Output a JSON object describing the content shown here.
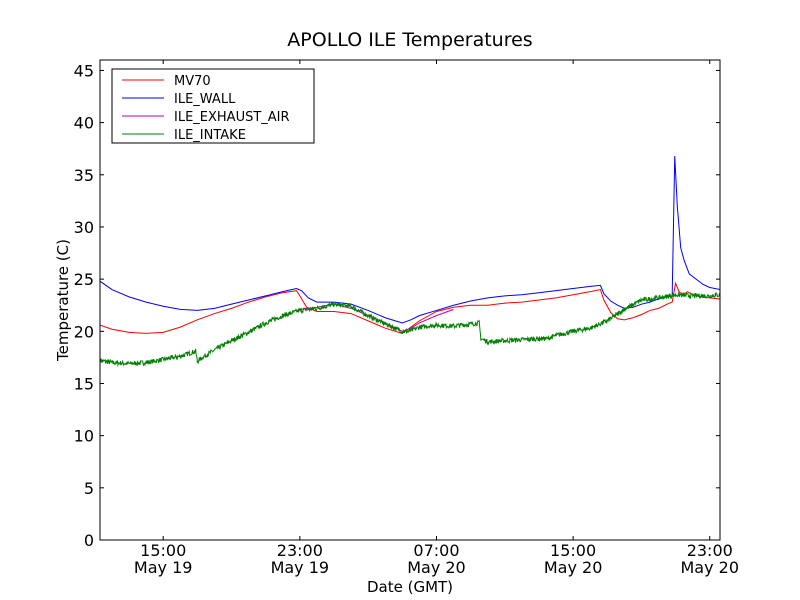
{
  "chart_data": {
    "type": "line",
    "title": "APOLLO ILE Temperatures",
    "xlabel": "Date (GMT)",
    "ylabel": "Temperature (C)",
    "ylim": [
      0,
      46
    ],
    "xlim": [
      11.3,
      47.6
    ],
    "x_unit": "hours since May 19 00:00 GMT",
    "yticks": [
      0,
      5,
      10,
      15,
      20,
      25,
      30,
      35,
      40,
      45
    ],
    "xticks": [
      {
        "x": 15,
        "time": "15:00",
        "date": "May 19"
      },
      {
        "x": 23,
        "time": "23:00",
        "date": "May 19"
      },
      {
        "x": 31,
        "time": "07:00",
        "date": "May 20"
      },
      {
        "x": 39,
        "time": "15:00",
        "date": "May 20"
      },
      {
        "x": 47,
        "time": "23:00",
        "date": "May 20"
      }
    ],
    "legend_position": "top-left",
    "series": [
      {
        "name": "MV70",
        "color": "#ff0000",
        "x": [
          11.3,
          12,
          13,
          14,
          15,
          16,
          17,
          18,
          19,
          20,
          21,
          22,
          22.8,
          23.0,
          23.4,
          24,
          25,
          26,
          27,
          28,
          29,
          29.5,
          30,
          31,
          32,
          33,
          34,
          35,
          36,
          37,
          38,
          39,
          40,
          40.6,
          40.8,
          41.2,
          41.6,
          42,
          42.5,
          43,
          43.5,
          44,
          44.5,
          44.8,
          45.0,
          45.2,
          45.4,
          45.7,
          46.0,
          46.5,
          47.0,
          47.6
        ],
        "y": [
          20.6,
          20.2,
          19.9,
          19.8,
          19.9,
          20.4,
          21.1,
          21.7,
          22.2,
          22.8,
          23.3,
          23.7,
          23.9,
          23.4,
          22.3,
          21.9,
          21.9,
          21.7,
          21.0,
          20.3,
          19.8,
          20.4,
          21.0,
          21.9,
          22.3,
          22.5,
          22.5,
          22.7,
          22.8,
          23.0,
          23.2,
          23.5,
          23.8,
          24.0,
          23.0,
          21.8,
          21.2,
          21.1,
          21.3,
          21.6,
          22.0,
          22.2,
          22.6,
          22.8,
          24.6,
          23.8,
          23.5,
          23.8,
          23.5,
          23.3,
          23.2,
          23.1
        ]
      },
      {
        "name": "ILE_WALL",
        "color": "#0000ff",
        "x": [
          11.3,
          12,
          13,
          14,
          15,
          16,
          17,
          18,
          19,
          20,
          21,
          22,
          22.8,
          23.1,
          23.5,
          24,
          25,
          26,
          27,
          28,
          29,
          29.5,
          30,
          31,
          32,
          33,
          34,
          35,
          36,
          37,
          38,
          39,
          40,
          40.6,
          40.8,
          41.2,
          41.6,
          42,
          42.5,
          43,
          43.5,
          44,
          44.5,
          44.8,
          44.95,
          45.1,
          45.3,
          45.5,
          45.8,
          46.2,
          46.6,
          47.0,
          47.6
        ],
        "y": [
          24.8,
          24.0,
          23.3,
          22.8,
          22.4,
          22.1,
          22.0,
          22.2,
          22.6,
          23.0,
          23.4,
          23.8,
          24.1,
          23.9,
          23.2,
          22.8,
          22.8,
          22.6,
          22.0,
          21.3,
          20.8,
          21.1,
          21.5,
          22.0,
          22.5,
          22.9,
          23.2,
          23.4,
          23.5,
          23.7,
          23.9,
          24.1,
          24.3,
          24.4,
          23.6,
          22.9,
          22.5,
          22.2,
          22.3,
          22.6,
          22.8,
          23.1,
          23.3,
          23.4,
          36.8,
          32.0,
          28.0,
          26.8,
          25.5,
          25.0,
          24.5,
          24.2,
          24.0
        ]
      },
      {
        "name": "ILE_EXHAUST_AIR",
        "color": "#bf00bf",
        "x": [
          23.0,
          24,
          25,
          26,
          27,
          28,
          29,
          29.5,
          30,
          31,
          32
        ],
        "y": [
          22.1,
          22.3,
          22.6,
          22.2,
          21.5,
          20.8,
          20.0,
          20.3,
          20.8,
          21.5,
          22.1
        ]
      },
      {
        "name": "ILE_INTAKE",
        "color": "#008000",
        "noise": 0.45,
        "x": [
          11.3,
          12,
          13,
          14,
          15,
          16,
          16.9,
          17.0,
          17.2,
          18,
          19,
          20,
          21,
          22,
          23,
          24,
          25,
          26,
          27,
          28,
          29,
          29.4,
          30,
          31,
          32,
          33,
          33.5,
          33.6,
          34,
          35,
          36,
          37,
          37.5,
          38,
          39,
          40,
          41,
          42,
          43,
          44,
          45,
          46,
          47,
          47.6
        ],
        "y": [
          17.2,
          17.0,
          16.9,
          17.0,
          17.3,
          17.6,
          18.1,
          17.1,
          17.4,
          18.2,
          19.1,
          19.9,
          20.8,
          21.5,
          22.0,
          22.2,
          22.6,
          22.4,
          21.5,
          20.7,
          20.0,
          20.0,
          20.4,
          20.6,
          20.5,
          20.7,
          20.8,
          19.3,
          19.0,
          19.1,
          19.2,
          19.3,
          19.3,
          19.6,
          20.0,
          20.3,
          21.0,
          22.1,
          23.0,
          23.2,
          23.5,
          23.4,
          23.4,
          23.5
        ]
      }
    ]
  }
}
